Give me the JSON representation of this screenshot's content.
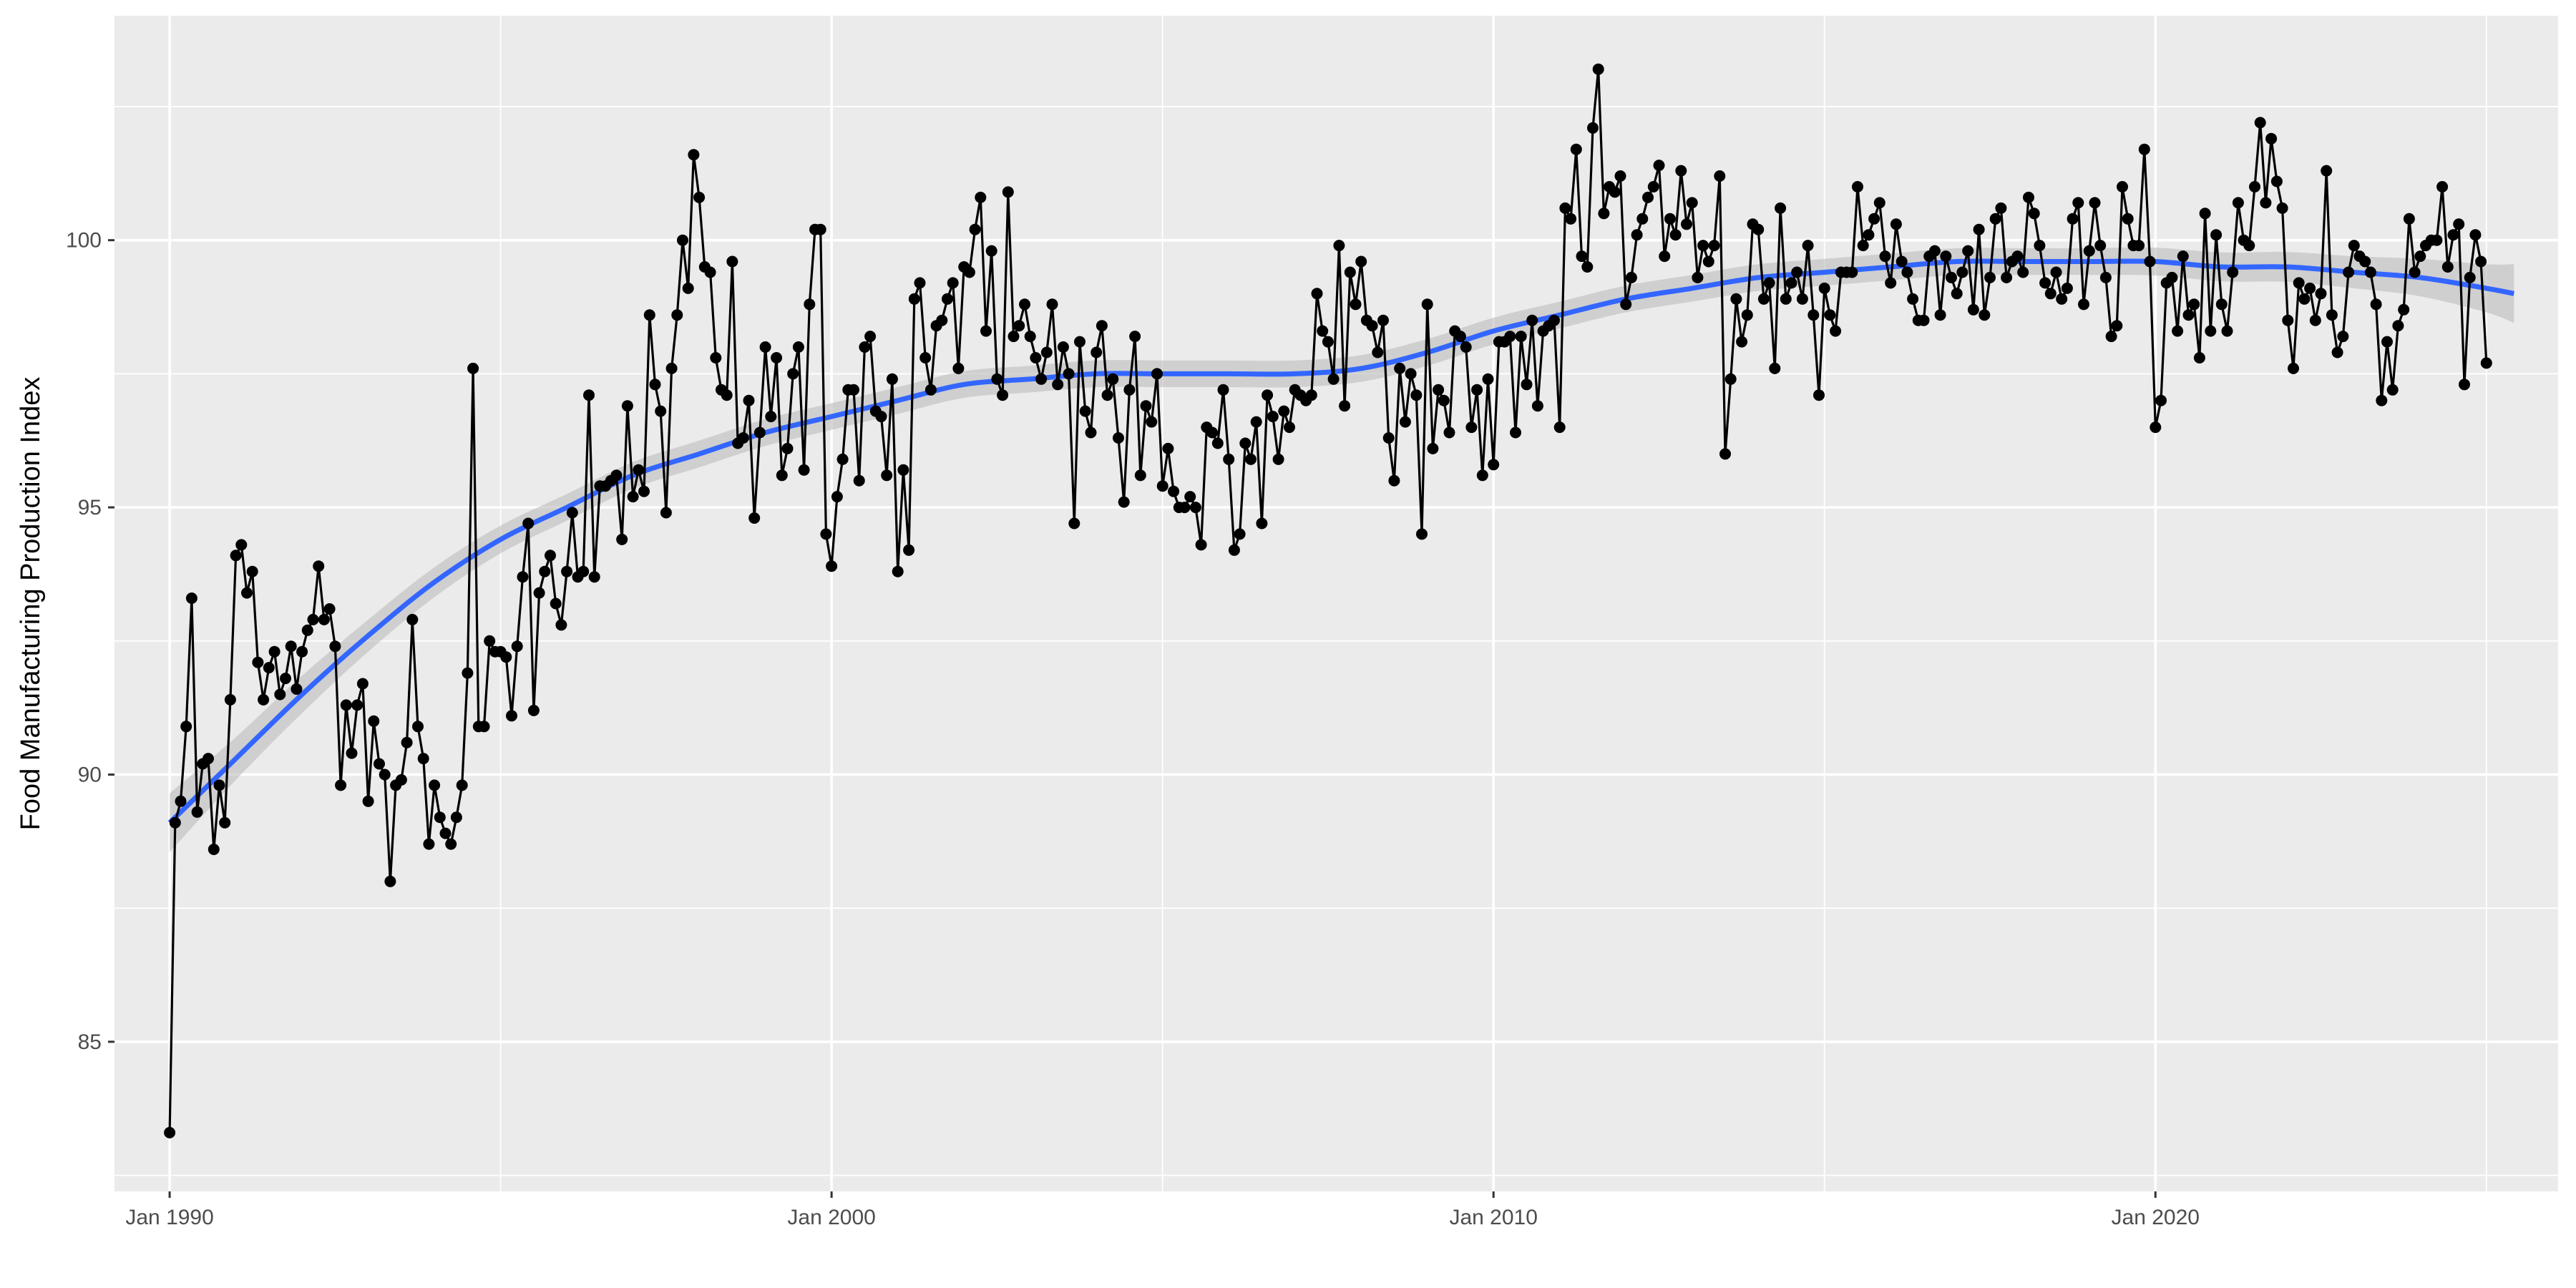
{
  "chart_data": {
    "type": "line",
    "title": "",
    "xlabel": "",
    "ylabel": "Food Manufacturing Production Index",
    "xlim": [
      "1989-03",
      "2026-02"
    ],
    "ylim": [
      82.2,
      104.2
    ],
    "x_ticks": [
      {
        "date": "1990-01",
        "label": "Jan 1990"
      },
      {
        "date": "2000-01",
        "label": "Jan 2000"
      },
      {
        "date": "2010-01",
        "label": "Jan 2010"
      },
      {
        "date": "2020-01",
        "label": "Jan 2020"
      }
    ],
    "y_ticks": [
      85,
      90,
      95,
      100
    ],
    "grid": true,
    "legend": "none",
    "colors": {
      "panel": "#ebebeb",
      "grid": "#ffffff",
      "series": "#000000",
      "smooth_line": "#3366ff",
      "smooth_band": "#bdbdbd"
    },
    "series": [
      {
        "style": "line+points",
        "x_start": "1990-01",
        "frequency": "monthly",
        "values": [
          83.3,
          89.1,
          89.5,
          90.9,
          93.3,
          89.3,
          90.2,
          90.3,
          88.6,
          89.8,
          89.1,
          91.4,
          94.1,
          94.3,
          93.4,
          93.8,
          92.1,
          91.4,
          92.0,
          92.3,
          91.5,
          91.8,
          92.4,
          91.6,
          92.3,
          92.7,
          92.9,
          93.9,
          92.9,
          93.1,
          92.4,
          89.8,
          91.3,
          90.4,
          91.3,
          91.7,
          89.5,
          91.0,
          90.2,
          90.0,
          88.0,
          89.8,
          89.9,
          90.6,
          92.9,
          90.9,
          90.3,
          88.7,
          89.8,
          89.2,
          88.9,
          88.7,
          89.2,
          89.8,
          91.9,
          97.6,
          90.9,
          90.9,
          92.5,
          92.3,
          92.3,
          92.2,
          91.1,
          92.4,
          93.7,
          94.7,
          91.2,
          93.4,
          93.8,
          94.1,
          93.2,
          92.8,
          93.8,
          94.9,
          93.7,
          93.8,
          97.1,
          93.7,
          95.4,
          95.4,
          95.5,
          95.6,
          94.4,
          96.9,
          95.2,
          95.7,
          95.3,
          98.6,
          97.3,
          96.8,
          94.9,
          97.6,
          98.6,
          100.0,
          99.1,
          101.6,
          100.8,
          99.5,
          99.4,
          97.8,
          97.2,
          97.1,
          99.6,
          96.2,
          96.3,
          97.0,
          94.8,
          96.4,
          98.0,
          96.7,
          97.8,
          95.6,
          96.1,
          97.5,
          98.0,
          95.7,
          98.8,
          100.2,
          100.2,
          94.5,
          93.9,
          95.2,
          95.9,
          97.2,
          97.2,
          95.5,
          98.0,
          98.2,
          96.8,
          96.7,
          95.6,
          97.4,
          93.8,
          95.7,
          94.2,
          98.9,
          99.2,
          97.8,
          97.2,
          98.4,
          98.5,
          98.9,
          99.2,
          97.6,
          99.5,
          99.4,
          100.2,
          100.8,
          98.3,
          99.8,
          97.4,
          97.1,
          100.9,
          98.2,
          98.4,
          98.8,
          98.2,
          97.8,
          97.4,
          97.9,
          98.8,
          97.3,
          98.0,
          97.5,
          94.7,
          98.1,
          96.8,
          96.4,
          97.9,
          98.4,
          97.1,
          97.4,
          96.3,
          95.1,
          97.2,
          98.2,
          95.6,
          96.9,
          96.6,
          97.5,
          95.4,
          96.1,
          95.3,
          95.0,
          95.0,
          95.2,
          95.0,
          94.3,
          96.5,
          96.4,
          96.2,
          97.2,
          95.9,
          94.2,
          94.5,
          96.2,
          95.9,
          96.6,
          94.7,
          97.1,
          96.7,
          95.9,
          96.8,
          96.5,
          97.2,
          97.1,
          97.0,
          97.1,
          99.0,
          98.3,
          98.1,
          97.4,
          99.9,
          96.9,
          99.4,
          98.8,
          99.6,
          98.5,
          98.4,
          97.9,
          98.5,
          96.3,
          95.5,
          97.6,
          96.6,
          97.5,
          97.1,
          94.5,
          98.8,
          96.1,
          97.2,
          97.0,
          96.4,
          98.3,
          98.2,
          98.0,
          96.5,
          97.2,
          95.6,
          97.4,
          95.8,
          98.1,
          98.1,
          98.2,
          96.4,
          98.2,
          97.3,
          98.5,
          96.9,
          98.3,
          98.4,
          98.5,
          96.5,
          100.6,
          100.4,
          101.7,
          99.7,
          99.5,
          102.1,
          103.2,
          100.5,
          101.0,
          100.9,
          101.2,
          98.8,
          99.3,
          100.1,
          100.4,
          100.8,
          101.0,
          101.4,
          99.7,
          100.4,
          100.1,
          101.3,
          100.3,
          100.7,
          99.3,
          99.9,
          99.6,
          99.9,
          101.2,
          96.0,
          97.4,
          98.9,
          98.1,
          98.6,
          100.3,
          100.2,
          98.9,
          99.2,
          97.6,
          100.6,
          98.9,
          99.2,
          99.4,
          98.9,
          99.9,
          98.6,
          97.1,
          99.1,
          98.6,
          98.3,
          99.4,
          99.4,
          99.4,
          101.0,
          99.9,
          100.1,
          100.4,
          100.7,
          99.7,
          99.2,
          100.3,
          99.6,
          99.4,
          98.9,
          98.5,
          98.5,
          99.7,
          99.8,
          98.6,
          99.7,
          99.3,
          99.0,
          99.4,
          99.8,
          98.7,
          100.2,
          98.6,
          99.3,
          100.4,
          100.6,
          99.3,
          99.6,
          99.7,
          99.4,
          100.8,
          100.5,
          99.9,
          99.2,
          99.0,
          99.4,
          98.9,
          99.1,
          100.4,
          100.7,
          98.8,
          99.8,
          100.7,
          99.9,
          99.3,
          98.2,
          98.4,
          101.0,
          100.4,
          99.9,
          99.9,
          101.7,
          99.6,
          96.5,
          97.0,
          99.2,
          99.3,
          98.3,
          99.7,
          98.6,
          98.8,
          97.8,
          100.5,
          98.3,
          100.1,
          98.8,
          98.3,
          99.4,
          100.7,
          100.0,
          99.9,
          101.0,
          102.2,
          100.7,
          101.9,
          101.1,
          100.6,
          98.5,
          97.6,
          99.2,
          98.9,
          99.1,
          98.5,
          99.0,
          101.3,
          98.6,
          97.9,
          98.2,
          99.4,
          99.9,
          99.7,
          99.6,
          99.4,
          98.8,
          97.0,
          98.1,
          97.2,
          98.4,
          98.7,
          100.4,
          99.4,
          99.7,
          99.9,
          100.0,
          100.0,
          101.0,
          99.5,
          100.1,
          100.3,
          97.3,
          99.3,
          100.1,
          99.6,
          97.7
        ]
      },
      {
        "style": "smooth",
        "x": [
          "1990-01",
          "1991-01",
          "1992-01",
          "1993-01",
          "1994-01",
          "1995-01",
          "1996-01",
          "1997-01",
          "1998-01",
          "1999-01",
          "2000-01",
          "2001-01",
          "2002-01",
          "2003-01",
          "2004-01",
          "2005-01",
          "2006-01",
          "2007-01",
          "2008-01",
          "2009-01",
          "2010-01",
          "2011-01",
          "2012-01",
          "2013-01",
          "2014-01",
          "2015-01",
          "2016-01",
          "2017-01",
          "2018-01",
          "2019-01",
          "2020-01",
          "2021-01",
          "2022-01",
          "2023-01",
          "2024-01",
          "2025-01",
          "2025-06"
        ],
        "values": [
          89.1,
          90.3,
          91.5,
          92.6,
          93.6,
          94.4,
          95.0,
          95.6,
          96.0,
          96.4,
          96.7,
          97.0,
          97.3,
          97.4,
          97.5,
          97.5,
          97.5,
          97.5,
          97.6,
          97.9,
          98.3,
          98.6,
          98.9,
          99.1,
          99.3,
          99.4,
          99.5,
          99.6,
          99.6,
          99.6,
          99.6,
          99.5,
          99.5,
          99.4,
          99.3,
          99.1,
          99.0
        ],
        "band_halfwidth": [
          0.55,
          0.4,
          0.35,
          0.3,
          0.28,
          0.26,
          0.25,
          0.25,
          0.25,
          0.25,
          0.25,
          0.25,
          0.25,
          0.25,
          0.25,
          0.25,
          0.25,
          0.25,
          0.25,
          0.25,
          0.25,
          0.25,
          0.25,
          0.25,
          0.25,
          0.25,
          0.25,
          0.25,
          0.25,
          0.25,
          0.26,
          0.27,
          0.28,
          0.3,
          0.35,
          0.45,
          0.55
        ]
      }
    ]
  }
}
